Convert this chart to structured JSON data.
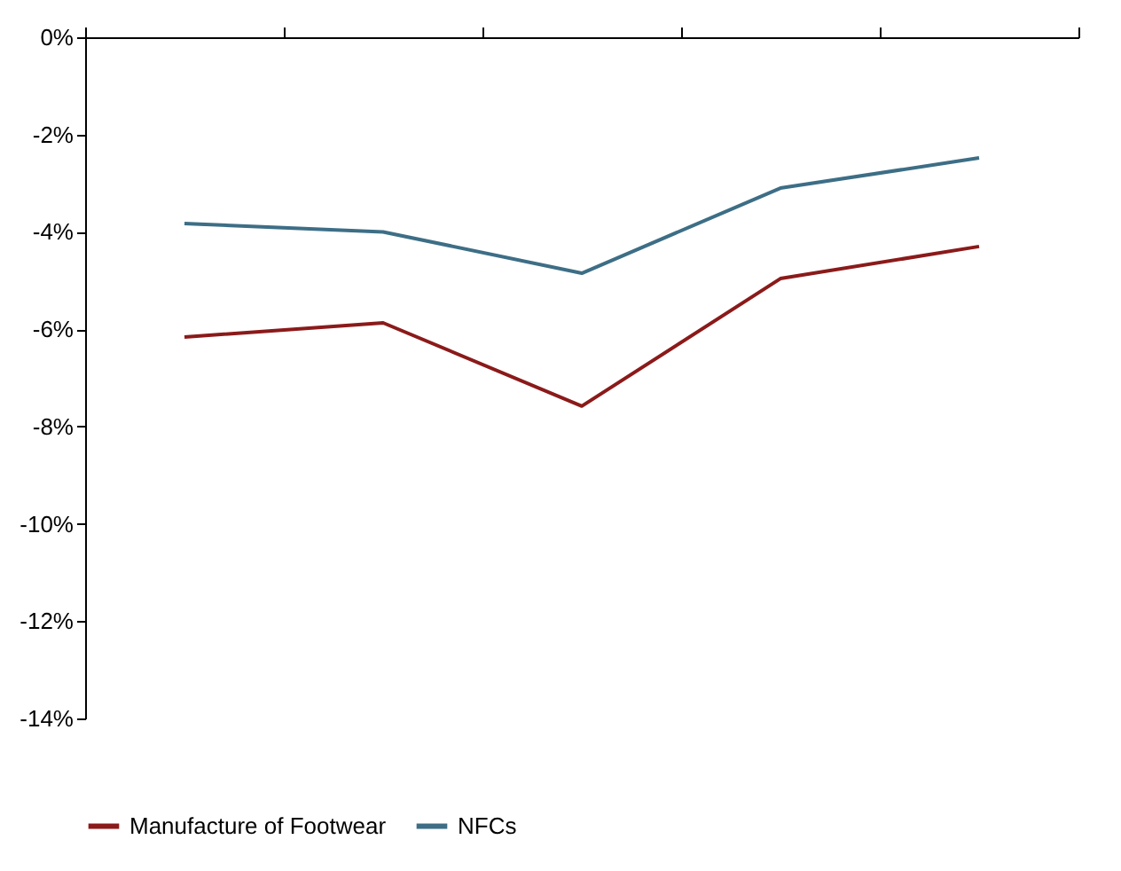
{
  "chart_data": {
    "type": "line",
    "categories": [
      null,
      null,
      null,
      null,
      null
    ],
    "series": [
      {
        "name": "Manufacture of Footwear",
        "color": "#8b1a1a",
        "values": [
          -6.16,
          -5.87,
          -7.58,
          -4.96,
          -4.3
        ]
      },
      {
        "name": "NFCs",
        "color": "#3d6e86",
        "values": [
          -3.83,
          -4.0,
          -4.85,
          -3.1,
          -2.48
        ]
      }
    ],
    "ylim": [
      -14,
      0
    ],
    "yticks": [
      {
        "value": 0,
        "label": "0%"
      },
      {
        "value": -2,
        "label": "-2%"
      },
      {
        "value": -4,
        "label": "-4%"
      },
      {
        "value": -6,
        "label": "-6%"
      },
      {
        "value": -8,
        "label": "-8%"
      },
      {
        "value": -10,
        "label": "-10%"
      },
      {
        "value": -12,
        "label": "-12%"
      },
      {
        "value": -14,
        "label": "-14%"
      }
    ],
    "tick_labels": "y",
    "grid": false,
    "legend": "bottom",
    "marker": "none",
    "line_style": "solid"
  }
}
